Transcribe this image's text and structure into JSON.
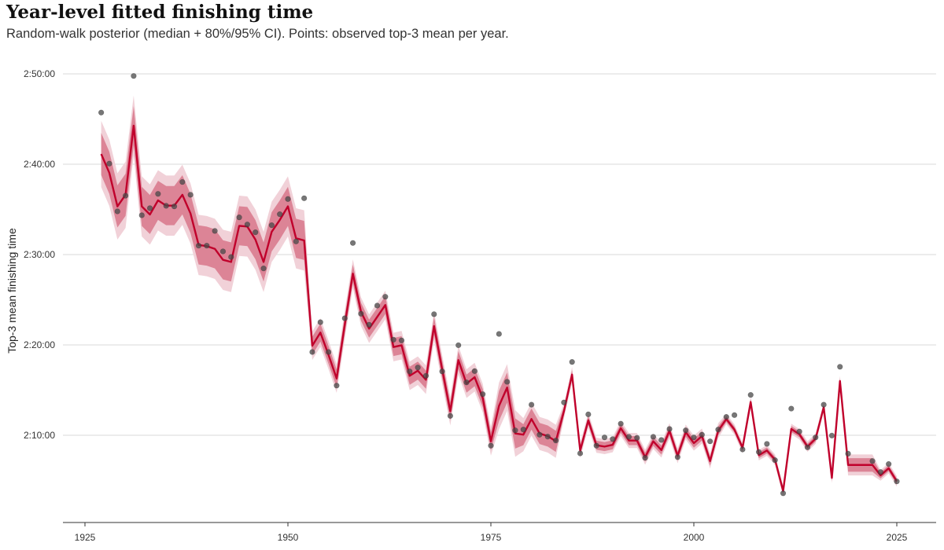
{
  "chart_data": {
    "type": "line",
    "title": "Year-level fitted finishing time",
    "subtitle": "Random-walk posterior (median + 80%/95% CI). Points: observed top-3 mean per year.",
    "xlabel": "",
    "ylabel": "Top-3 mean finishing time",
    "x_ticks": [
      "1925",
      "1950",
      "1975",
      "2000",
      "2025"
    ],
    "y_ticks": [
      "2:10:00",
      "2:20:00",
      "2:30:00",
      "2:40:00",
      "2:50:00"
    ],
    "xlim": [
      1922,
      2030
    ],
    "ylim": [
      "2:00:20",
      "2:52:30"
    ],
    "grid": "horizontal",
    "colors": {
      "median": "#c0002b",
      "ci80": "#dc8496",
      "ci95": "#f1d1d8",
      "points": "#4a4a4a"
    },
    "years": [
      1927,
      1928,
      1929,
      1930,
      1931,
      1932,
      1933,
      1934,
      1935,
      1936,
      1937,
      1938,
      1939,
      1940,
      1941,
      1942,
      1943,
      1944,
      1945,
      1946,
      1947,
      1948,
      1949,
      1950,
      1951,
      1952,
      1953,
      1954,
      1955,
      1956,
      1957,
      1958,
      1959,
      1960,
      1961,
      1962,
      1963,
      1964,
      1965,
      1966,
      1967,
      1968,
      1969,
      1970,
      1971,
      1972,
      1973,
      1974,
      1975,
      1976,
      1977,
      1978,
      1979,
      1980,
      1981,
      1982,
      1983,
      1984,
      1985,
      1986,
      1987,
      1988,
      1989,
      1990,
      1991,
      1992,
      1993,
      1994,
      1995,
      1996,
      1997,
      1998,
      1999,
      2000,
      2001,
      2002,
      2003,
      2004,
      2005,
      2006,
      2007,
      2008,
      2009,
      2010,
      2011,
      2012,
      2013,
      2014,
      2015,
      2016,
      2017,
      2018,
      2019,
      2020,
      2021,
      2022,
      2023,
      2024,
      2025
    ],
    "median": [
      "2:41:08",
      "2:39:03",
      "2:35:20",
      "2:36:37",
      "2:44:16",
      "2:35:20",
      "2:34:26",
      "2:36:00",
      "2:35:25",
      "2:35:25",
      "2:36:37",
      "2:34:33",
      "2:31:04",
      "2:30:56",
      "2:30:38",
      "2:29:25",
      "2:29:11",
      "2:33:11",
      "2:33:06",
      "2:31:39",
      "2:29:11",
      "2:32:31",
      "2:33:50",
      "2:35:20",
      "2:31:48",
      "2:31:34",
      "2:19:55",
      "2:21:22",
      "2:18:54",
      "2:16:17",
      "2:22:14",
      "2:27:53",
      "2:23:41",
      "2:21:48",
      "2:23:06",
      "2:24:25",
      "2:19:46",
      "2:19:58",
      "2:16:35",
      "2:17:09",
      "2:16:09",
      "2:22:05",
      "2:17:18",
      "2:12:40",
      "2:18:19",
      "2:15:43",
      "2:16:26",
      "2:14:07",
      "2:09:20",
      "2:13:15",
      "2:15:17",
      "2:10:12",
      "2:10:04",
      "2:11:48",
      "2:10:12",
      "2:09:55",
      "2:09:20",
      "2:12:40",
      "2:16:43",
      "2:08:19",
      "2:11:39",
      "2:08:54",
      "2:08:45",
      "2:08:57",
      "2:10:47",
      "2:09:25",
      "2:09:25",
      "2:07:35",
      "2:09:20",
      "2:08:22",
      "2:10:30",
      "2:07:44",
      "2:10:21",
      "2:09:08",
      "2:09:55",
      "2:07:09",
      "2:10:30",
      "2:11:48",
      "2:10:38",
      "2:08:37",
      "2:13:41",
      "2:07:48",
      "2:08:19",
      "2:07:18",
      "2:03:50",
      "2:10:42",
      "2:10:07",
      "2:08:45",
      "2:09:38",
      "2:13:06",
      "2:05:17",
      "2:16:00",
      "2:06:43",
      "2:06:43",
      "2:06:43",
      "2:06:43",
      "2:05:34",
      "2:06:21",
      "2:04:54"
    ],
    "observed": [
      "2:45:43",
      "2:40:04",
      "2:34:47",
      "2:36:31",
      "2:49:46",
      "2:34:21",
      "2:35:08",
      "2:36:43",
      "2:35:24",
      "2:35:20",
      "2:38:02",
      "2:36:37",
      "2:30:59",
      "2:30:59",
      "2:32:37",
      "2:30:21",
      "2:29:44",
      "2:34:07",
      "2:33:20",
      "2:32:28",
      "2:28:28",
      "2:33:15",
      "2:34:28",
      "2:36:09",
      "2:31:27",
      "2:36:14",
      "2:19:13",
      "2:22:31",
      "2:19:13",
      "2:15:30",
      "2:22:57",
      "2:31:17",
      "2:23:27",
      "2:22:14",
      "2:24:21",
      "2:25:20",
      "2:20:35",
      "2:20:30",
      "2:17:04",
      "2:17:30",
      "2:16:35",
      "2:23:24",
      "2:17:04",
      "2:12:09",
      "2:19:58",
      "2:15:51",
      "2:17:06",
      "2:14:33",
      "2:08:51",
      "2:21:13",
      "2:15:55",
      "2:10:33",
      "2:10:38",
      "2:13:23",
      "2:10:04",
      "2:09:51",
      "2:09:25",
      "2:13:38",
      "2:18:07",
      "2:08:00",
      "2:12:19",
      "2:08:51",
      "2:09:46",
      "2:09:35",
      "2:11:17",
      "2:09:50",
      "2:09:43",
      "2:07:30",
      "2:09:50",
      "2:09:29",
      "2:10:42",
      "2:07:35",
      "2:10:33",
      "2:09:46",
      "2:10:04",
      "2:09:20",
      "2:10:38",
      "2:12:02",
      "2:12:14",
      "2:08:26",
      "2:14:28",
      "2:08:09",
      "2:09:03",
      "2:07:15",
      "2:03:35",
      "2:12:57",
      "2:10:25",
      "2:08:40",
      "2:09:46",
      "2:13:23",
      "2:09:58",
      "2:17:35",
      "2:07:58",
      null,
      null,
      "2:07:09",
      "2:05:56",
      "2:06:49",
      "2:04:54"
    ],
    "ci80_halfwidth_sec": [
      140,
      140,
      140,
      140,
      130,
      130,
      130,
      130,
      130,
      130,
      130,
      130,
      130,
      130,
      130,
      130,
      130,
      130,
      130,
      130,
      130,
      130,
      130,
      130,
      130,
      130,
      60,
      60,
      60,
      60,
      60,
      60,
      60,
      60,
      60,
      60,
      60,
      60,
      60,
      60,
      60,
      60,
      60,
      60,
      60,
      60,
      60,
      60,
      60,
      100,
      100,
      100,
      70,
      70,
      70,
      70,
      70,
      30,
      30,
      30,
      30,
      30,
      30,
      30,
      30,
      30,
      30,
      30,
      30,
      30,
      30,
      30,
      30,
      30,
      30,
      30,
      30,
      20,
      20,
      20,
      20,
      20,
      20,
      20,
      20,
      20,
      20,
      20,
      20,
      20,
      20,
      20,
      45,
      45,
      45,
      45,
      20,
      20,
      20
    ],
    "ci95_halfwidth_sec": [
      220,
      220,
      220,
      220,
      200,
      200,
      200,
      200,
      200,
      200,
      200,
      200,
      200,
      200,
      200,
      200,
      200,
      200,
      200,
      200,
      200,
      200,
      200,
      200,
      200,
      200,
      95,
      95,
      95,
      95,
      95,
      95,
      95,
      95,
      95,
      95,
      95,
      95,
      95,
      95,
      95,
      95,
      95,
      95,
      95,
      95,
      95,
      95,
      95,
      155,
      155,
      155,
      110,
      110,
      110,
      110,
      110,
      50,
      50,
      50,
      50,
      50,
      50,
      50,
      50,
      50,
      50,
      50,
      50,
      50,
      50,
      50,
      50,
      50,
      50,
      50,
      50,
      35,
      35,
      35,
      35,
      35,
      35,
      35,
      35,
      35,
      35,
      35,
      35,
      35,
      35,
      35,
      70,
      70,
      70,
      70,
      35,
      35,
      35
    ]
  }
}
